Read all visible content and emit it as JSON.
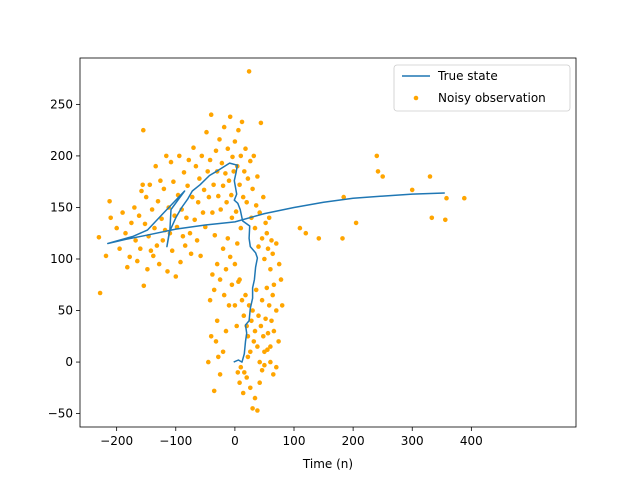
{
  "chart_data": {
    "type": "line",
    "title": "",
    "xlabel": "Time (n)",
    "ylabel": "",
    "xlim": [
      -262,
      577
    ],
    "ylim": [
      -63,
      295
    ],
    "xticks": [
      -200,
      -100,
      0,
      100,
      200,
      300,
      400
    ],
    "yticks": [
      -50,
      0,
      50,
      100,
      150,
      200,
      250
    ],
    "grid": false,
    "legend_position": "top-right",
    "colors": {
      "true_state": "#1f77b4",
      "noisy": "#ffa500"
    },
    "series": [
      {
        "name": "True state",
        "kind": "line",
        "points": [
          [
            -2,
            0
          ],
          [
            6,
            2
          ],
          [
            12,
            0
          ],
          [
            16,
            8
          ],
          [
            18,
            20
          ],
          [
            20,
            28
          ],
          [
            18,
            36
          ],
          [
            24,
            40
          ],
          [
            26,
            52
          ],
          [
            30,
            62
          ],
          [
            30,
            72
          ],
          [
            33,
            80
          ],
          [
            35,
            92
          ],
          [
            38,
            101
          ],
          [
            35,
            106
          ],
          [
            26,
            112
          ],
          [
            24,
            120
          ],
          [
            25,
            132
          ],
          [
            13,
            137
          ],
          [
            9,
            148
          ],
          [
            5,
            154
          ],
          [
            -1,
            157
          ],
          [
            3,
            163
          ],
          [
            -1,
            176
          ],
          [
            2,
            184
          ],
          [
            4,
            191
          ],
          [
            -9,
            193
          ],
          [
            -28,
            186
          ],
          [
            -43,
            181
          ],
          [
            -59,
            172
          ],
          [
            -72,
            166
          ],
          [
            -80,
            158
          ],
          [
            -90,
            150
          ],
          [
            -100,
            140
          ],
          [
            -111,
            126
          ],
          [
            -115,
            112
          ],
          [
            -110,
            128
          ],
          [
            -108,
            148
          ],
          [
            -85,
            166
          ],
          [
            -120,
            145
          ],
          [
            -148,
            128
          ],
          [
            -172,
            122
          ],
          [
            -215,
            115
          ],
          [
            -185,
            119
          ],
          [
            -150,
            123
          ],
          [
            -100,
            129
          ],
          [
            -50,
            133
          ],
          [
            0,
            136
          ],
          [
            50,
            144
          ],
          [
            100,
            150
          ],
          [
            150,
            155
          ],
          [
            200,
            159
          ],
          [
            250,
            161
          ],
          [
            300,
            163
          ],
          [
            355,
            164
          ]
        ]
      },
      {
        "name": "Noisy observation",
        "kind": "scatter",
        "points": [
          [
            -228,
            67
          ],
          [
            -230,
            121
          ],
          [
            -218,
            103
          ],
          [
            -212,
            156
          ],
          [
            -210,
            140
          ],
          [
            -200,
            130
          ],
          [
            -195,
            110
          ],
          [
            -190,
            145
          ],
          [
            -185,
            125
          ],
          [
            -182,
            92
          ],
          [
            -178,
            102
          ],
          [
            -175,
            135
          ],
          [
            -170,
            150
          ],
          [
            -168,
            118
          ],
          [
            -165,
            98
          ],
          [
            -162,
            142
          ],
          [
            -160,
            110
          ],
          [
            -158,
            166
          ],
          [
            -156,
            172
          ],
          [
            -155,
            225
          ],
          [
            -154,
            74
          ],
          [
            -152,
            134
          ],
          [
            -150,
            160
          ],
          [
            -148,
            90
          ],
          [
            -146,
            122
          ],
          [
            -144,
            172
          ],
          [
            -142,
            108
          ],
          [
            -140,
            148
          ],
          [
            -138,
            103
          ],
          [
            -136,
            130
          ],
          [
            -134,
            190
          ],
          [
            -132,
            113
          ],
          [
            -130,
            156
          ],
          [
            -128,
            95
          ],
          [
            -126,
            176
          ],
          [
            -124,
            139
          ],
          [
            -122,
            118
          ],
          [
            -120,
            168
          ],
          [
            -118,
            128
          ],
          [
            -116,
            200
          ],
          [
            -114,
            88
          ],
          [
            -112,
            150
          ],
          [
            -110,
            125
          ],
          [
            -108,
            194
          ],
          [
            -106,
            108
          ],
          [
            -104,
            175
          ],
          [
            -102,
            142
          ],
          [
            -100,
            83
          ],
          [
            -98,
            131
          ],
          [
            -96,
            162
          ],
          [
            -94,
            200
          ],
          [
            -92,
            97
          ],
          [
            -90,
            148
          ],
          [
            -88,
            122
          ],
          [
            -86,
            184
          ],
          [
            -84,
            113
          ],
          [
            -82,
            140
          ],
          [
            -80,
            171
          ],
          [
            -78,
            196
          ],
          [
            -76,
            125
          ],
          [
            -74,
            105
          ],
          [
            -72,
            160
          ],
          [
            -70,
            208
          ],
          [
            -68,
            138
          ],
          [
            -66,
            190
          ],
          [
            -64,
            118
          ],
          [
            -62,
            155
          ],
          [
            -60,
            178
          ],
          [
            -58,
            103
          ],
          [
            -56,
            200
          ],
          [
            -54,
            145
          ],
          [
            -52,
            167
          ],
          [
            -50,
            131
          ],
          [
            -48,
            223
          ],
          [
            -46,
            185
          ],
          [
            -44,
            160
          ],
          [
            -42,
            196
          ],
          [
            -40,
            240
          ],
          [
            -38,
            145
          ],
          [
            -36,
            172
          ],
          [
            -34,
            123
          ],
          [
            -32,
            205
          ],
          [
            -30,
            185
          ],
          [
            -28,
            161
          ],
          [
            -26,
            216
          ],
          [
            -24,
            148
          ],
          [
            -22,
            193
          ],
          [
            -20,
            171
          ],
          [
            -18,
            228
          ],
          [
            -16,
            183
          ],
          [
            -14,
            155
          ],
          [
            -12,
            207
          ],
          [
            -10,
            176
          ],
          [
            -8,
            238
          ],
          [
            -6,
            162
          ],
          [
            -4,
            199
          ],
          [
            -2,
            185
          ],
          [
            0,
            214
          ],
          [
            2,
            146
          ],
          [
            4,
            190
          ],
          [
            6,
            225
          ],
          [
            8,
            172
          ],
          [
            10,
            200
          ],
          [
            12,
            233
          ],
          [
            14,
            160
          ],
          [
            16,
            185
          ],
          [
            18,
            207
          ],
          [
            20,
            155
          ],
          [
            22,
            178
          ],
          [
            24,
            282
          ],
          [
            26,
            195
          ],
          [
            28,
            140
          ],
          [
            30,
            168
          ],
          [
            32,
            200
          ],
          [
            34,
            130
          ],
          [
            36,
            152
          ],
          [
            38,
            180
          ],
          [
            40,
            112
          ],
          [
            42,
            145
          ],
          [
            44,
            232
          ],
          [
            46,
            120
          ],
          [
            48,
            160
          ],
          [
            50,
            100
          ],
          [
            52,
            135
          ],
          [
            54,
            125
          ],
          [
            56,
            110
          ],
          [
            58,
            140
          ],
          [
            60,
            90
          ],
          [
            62,
            118
          ],
          [
            64,
            105
          ],
          [
            66,
            75
          ],
          [
            70,
            115
          ],
          [
            75,
            95
          ],
          [
            78,
            80
          ],
          [
            80,
            55
          ],
          [
            8,
            80
          ],
          [
            12,
            60
          ],
          [
            15,
            45
          ],
          [
            18,
            65
          ],
          [
            20,
            35
          ],
          [
            22,
            25
          ],
          [
            24,
            55
          ],
          [
            26,
            10
          ],
          [
            28,
            40
          ],
          [
            30,
            50
          ],
          [
            32,
            20
          ],
          [
            34,
            30
          ],
          [
            36,
            70
          ],
          [
            38,
            15
          ],
          [
            40,
            45
          ],
          [
            42,
            0
          ],
          [
            44,
            35
          ],
          [
            46,
            60
          ],
          [
            48,
            25
          ],
          [
            50,
            10
          ],
          [
            52,
            42
          ],
          [
            54,
            72
          ],
          [
            56,
            28
          ],
          [
            58,
            55
          ],
          [
            60,
            15
          ],
          [
            62,
            40
          ],
          [
            64,
            65
          ],
          [
            66,
            30
          ],
          [
            70,
            50
          ],
          [
            74,
            20
          ],
          [
            -10,
            55
          ],
          [
            -15,
            30
          ],
          [
            -20,
            10
          ],
          [
            -25,
            -12
          ],
          [
            -28,
            5
          ],
          [
            -30,
            40
          ],
          [
            -32,
            20
          ],
          [
            -35,
            -28
          ],
          [
            -5,
            75
          ],
          [
            0,
            55
          ],
          [
            3,
            35
          ],
          [
            5,
            -10
          ],
          [
            8,
            -20
          ],
          [
            10,
            -5
          ],
          [
            14,
            -30
          ],
          [
            16,
            -10
          ],
          [
            20,
            -15
          ],
          [
            22,
            5
          ],
          [
            26,
            -25
          ],
          [
            30,
            -45
          ],
          [
            34,
            -35
          ],
          [
            38,
            -47
          ],
          [
            42,
            -20
          ],
          [
            46,
            -8
          ],
          [
            50,
            -3
          ],
          [
            55,
            12
          ],
          [
            60,
            0
          ],
          [
            65,
            -12
          ],
          [
            70,
            -5
          ],
          [
            -40,
            25
          ],
          [
            -45,
            0
          ],
          [
            -42,
            60
          ],
          [
            -38,
            85
          ],
          [
            -35,
            70
          ],
          [
            -30,
            95
          ],
          [
            -25,
            80
          ],
          [
            -20,
            110
          ],
          [
            -18,
            65
          ],
          [
            -15,
            90
          ],
          [
            -12,
            120
          ],
          [
            -8,
            102
          ],
          [
            -5,
            140
          ],
          [
            0,
            95
          ],
          [
            4,
            115
          ],
          [
            6,
            78
          ],
          [
            10,
            130
          ],
          [
            110,
            130
          ],
          [
            120,
            125
          ],
          [
            142,
            120
          ],
          [
            182,
            120
          ],
          [
            184,
            160
          ],
          [
            205,
            135
          ],
          [
            240,
            200
          ],
          [
            242,
            185
          ],
          [
            250,
            180
          ],
          [
            300,
            167
          ],
          [
            330,
            180
          ],
          [
            333,
            140
          ],
          [
            358,
            159
          ],
          [
            356,
            138
          ],
          [
            388,
            159
          ]
        ]
      }
    ]
  }
}
